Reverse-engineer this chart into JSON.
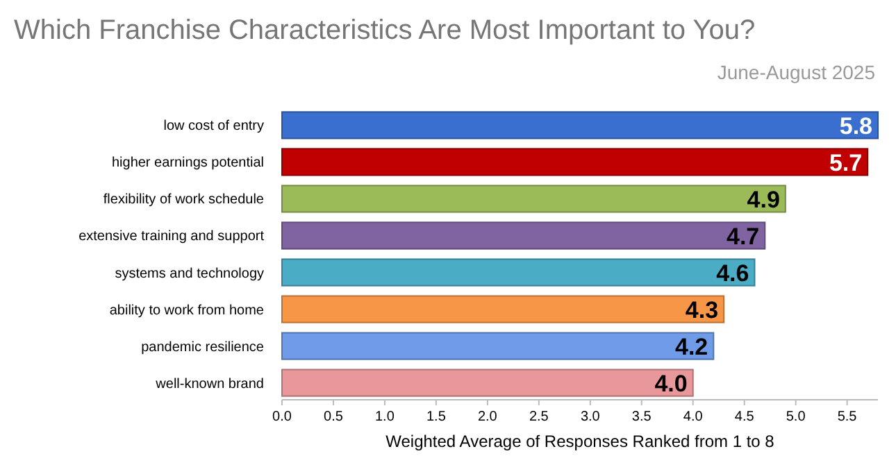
{
  "chart_data": {
    "type": "bar",
    "orientation": "horizontal",
    "title": "Which Franchise Characteristics Are Most Important to You?",
    "subtitle": "June-August 2025",
    "xlabel": "Weighted Average of Responses Ranked from 1 to 8",
    "categories": [
      "low cost of entry",
      "higher earnings potential",
      "flexibility of work schedule",
      "extensive training and support",
      "systems and technology",
      "ability to work from home",
      "pandemic resilience",
      "well-known brand"
    ],
    "values": [
      5.8,
      5.7,
      4.9,
      4.7,
      4.6,
      4.3,
      4.2,
      4.0
    ],
    "colors": [
      "#3a6fd0",
      "#c00000",
      "#9bbb59",
      "#8064a2",
      "#4bacc6",
      "#f79646",
      "#6f9be8",
      "#e8979a"
    ],
    "value_labels": [
      "5.8",
      "5.7",
      "4.9",
      "4.7",
      "4.6",
      "4.3",
      "4.2",
      "4.0"
    ],
    "xlim": [
      0,
      5.8
    ],
    "xticks": [
      {
        "value": 0,
        "label": "0.0"
      },
      {
        "value": 0.5,
        "label": "0.5"
      },
      {
        "value": 1,
        "label": "1.0"
      },
      {
        "value": 1.5,
        "label": "1.5"
      },
      {
        "value": 2,
        "label": "2.0"
      },
      {
        "value": 2.5,
        "label": "2.5"
      },
      {
        "value": 3,
        "label": "3.0"
      },
      {
        "value": 3.5,
        "label": "3.5"
      },
      {
        "value": 4,
        "label": "4.0"
      },
      {
        "value": 4.5,
        "label": "4.5"
      },
      {
        "value": 5,
        "label": "5.0"
      },
      {
        "value": 5.5,
        "label": "5.5"
      }
    ]
  }
}
